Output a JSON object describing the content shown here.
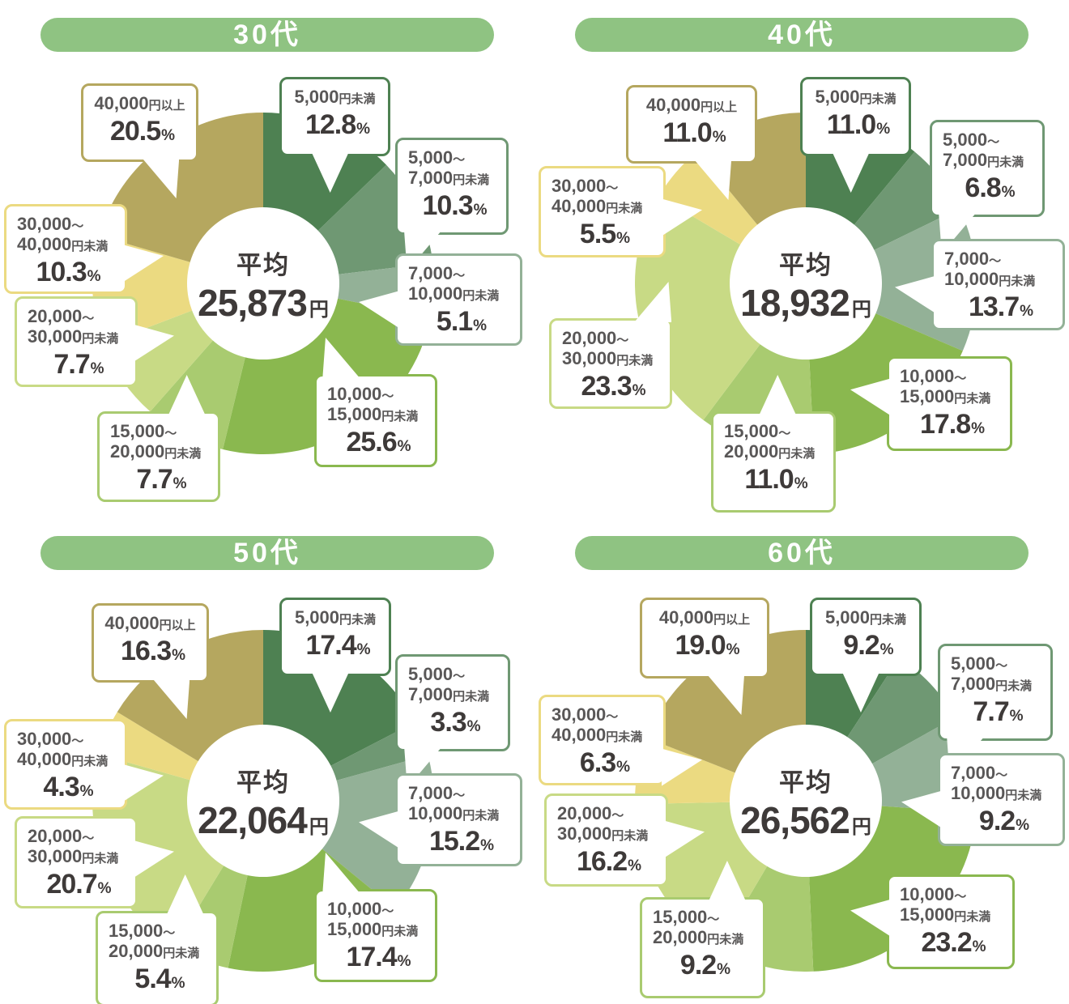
{
  "palette": {
    "banner_green": "#8fc382",
    "banner_text": "#ffffff",
    "label_text": "#595757",
    "value_text": "#3e3a39",
    "callout_bg": "#ffffff",
    "page_bg": "#ffffff"
  },
  "categories": [
    {
      "id": "under-5000",
      "label": "5,000円未満",
      "lines": [
        "5,000円未満"
      ],
      "color": "#4e8152"
    },
    {
      "id": "5000-7000",
      "label": "5,000～7,000円未満",
      "lines": [
        "5,000～",
        "7,000円未満"
      ],
      "color": "#6f9873"
    },
    {
      "id": "7000-10000",
      "label": "7,000～10,000円未満",
      "lines": [
        "7,000～",
        "10,000円未満"
      ],
      "color": "#93b197"
    },
    {
      "id": "10000-15000",
      "label": "10,000～15,000円未満",
      "lines": [
        "10,000～",
        "15,000円未満"
      ],
      "color": "#8ab84f"
    },
    {
      "id": "15000-20000",
      "label": "15,000～20,000円未満",
      "lines": [
        "15,000～",
        "20,000円未満"
      ],
      "color": "#a9cb70"
    },
    {
      "id": "20000-30000",
      "label": "20,000～30,000円未満",
      "lines": [
        "20,000～",
        "30,000円未満"
      ],
      "color": "#c8da85"
    },
    {
      "id": "30000-40000",
      "label": "30,000～40,000円未満",
      "lines": [
        "30,000～",
        "40,000円未満"
      ],
      "color": "#ebda81"
    },
    {
      "id": "over-40000",
      "label": "40,000円以上",
      "lines": [
        "40,000円以上"
      ],
      "color": "#b5a75f"
    }
  ],
  "chart_data": [
    {
      "type": "pie",
      "title": "30代",
      "center_label": "平均",
      "average": "25,873",
      "unit": "円",
      "percent_unit": "%",
      "values": [
        12.8,
        10.3,
        5.1,
        25.6,
        7.7,
        7.7,
        10.3,
        20.5
      ]
    },
    {
      "type": "pie",
      "title": "40代",
      "center_label": "平均",
      "average": "18,932",
      "unit": "円",
      "percent_unit": "%",
      "values": [
        11.0,
        6.8,
        13.7,
        17.8,
        11.0,
        23.3,
        5.5,
        11.0
      ]
    },
    {
      "type": "pie",
      "title": "50代",
      "center_label": "平均",
      "average": "22,064",
      "unit": "円",
      "percent_unit": "%",
      "values": [
        17.4,
        3.3,
        15.2,
        17.4,
        5.4,
        20.7,
        4.3,
        16.3
      ]
    },
    {
      "type": "pie",
      "title": "60代",
      "center_label": "平均",
      "average": "26,562",
      "unit": "円",
      "percent_unit": "%",
      "values": [
        9.2,
        7.7,
        9.2,
        23.2,
        9.2,
        16.2,
        6.3,
        19.0
      ]
    }
  ]
}
